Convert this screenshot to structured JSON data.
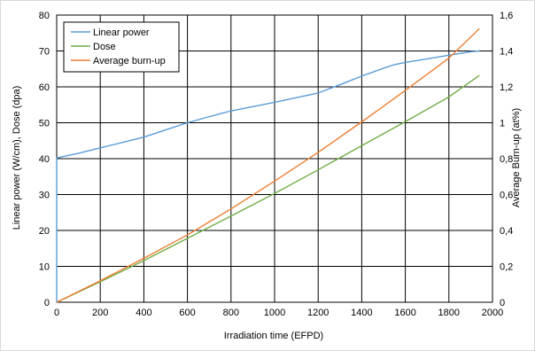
{
  "chart_data": {
    "type": "line",
    "title": "",
    "xlabel": "Irradiation time (EFPD)",
    "ylabel_left": "Linear power (W/cm), Dose (dpa)",
    "ylabel_right": "Average Burn-up (at%)",
    "xlim": [
      0,
      2000
    ],
    "ylim_left": [
      0,
      80
    ],
    "ylim_right": [
      0,
      1.6
    ],
    "x_ticks": [
      0,
      200,
      400,
      600,
      800,
      1000,
      1200,
      1400,
      1600,
      1800,
      2000
    ],
    "y_left_ticks": [
      0,
      10,
      20,
      30,
      40,
      50,
      60,
      70,
      80
    ],
    "y_right_ticks": [
      "0",
      "0,2",
      "0,4",
      "0,6",
      "0,8",
      "1",
      "1,2",
      "1,4",
      "1,6"
    ],
    "grid": true,
    "legend_position": "top-left",
    "series": [
      {
        "name": "Linear power",
        "axis": "left",
        "color": "#5B9BD5",
        "x": [
          0,
          0,
          100,
          200,
          300,
          400,
          500,
          600,
          700,
          800,
          900,
          1000,
          1100,
          1200,
          1300,
          1400,
          1500,
          1550,
          1600,
          1700,
          1800,
          1900,
          1940
        ],
        "y": [
          0,
          40.2,
          41.5,
          43,
          44.5,
          46,
          48,
          50,
          51.7,
          53.3,
          54.5,
          55.7,
          57,
          58.3,
          60.6,
          63,
          65.2,
          66.2,
          66.8,
          67.8,
          68.8,
          69.8,
          70
        ]
      },
      {
        "name": "Dose",
        "axis": "left",
        "color": "#70AD47",
        "x": [
          0,
          200,
          400,
          600,
          800,
          1000,
          1200,
          1400,
          1600,
          1800,
          1940
        ],
        "y": [
          0,
          5.7,
          11.6,
          17.8,
          24.0,
          30.3,
          36.9,
          43.6,
          50.3,
          57.2,
          63.2
        ]
      },
      {
        "name": "Average burn-up",
        "axis": "right",
        "color": "#ED7D31",
        "x": [
          0,
          200,
          400,
          600,
          800,
          1000,
          1200,
          1400,
          1600,
          1800,
          1940
        ],
        "y": [
          0,
          0.12,
          0.245,
          0.375,
          0.52,
          0.675,
          0.835,
          1.005,
          1.18,
          1.36,
          1.525
        ]
      }
    ]
  }
}
